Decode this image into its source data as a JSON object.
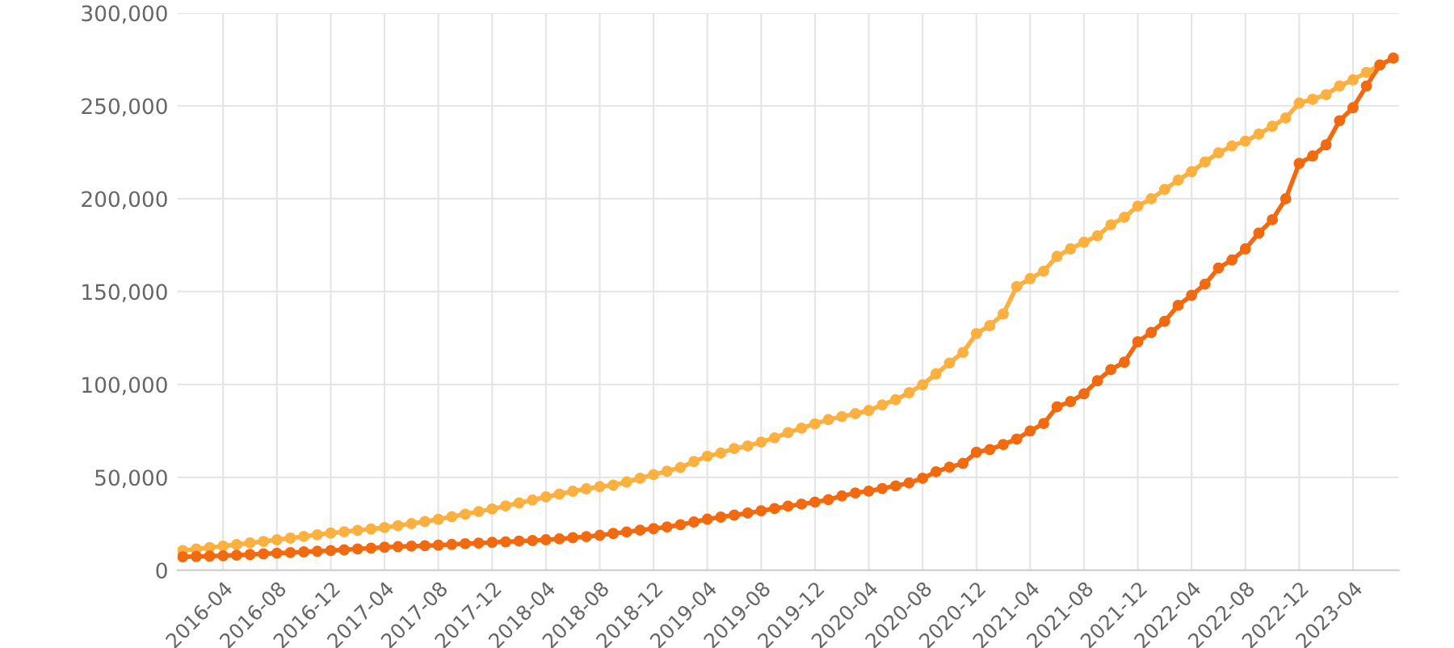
{
  "chart_data": {
    "type": "line",
    "categories": [
      null,
      null,
      null,
      "2016-04",
      null,
      null,
      null,
      "2016-08",
      null,
      null,
      null,
      "2016-12",
      null,
      null,
      null,
      "2017-04",
      null,
      null,
      null,
      "2017-08",
      null,
      null,
      null,
      "2017-12",
      null,
      null,
      null,
      "2018-04",
      null,
      null,
      null,
      "2018-08",
      null,
      null,
      null,
      "2018-12",
      null,
      null,
      null,
      "2019-04",
      null,
      null,
      null,
      "2019-08",
      null,
      null,
      null,
      "2019-12",
      null,
      null,
      null,
      "2020-04",
      null,
      null,
      null,
      "2020-08",
      null,
      null,
      null,
      "2020-12",
      null,
      null,
      null,
      "2021-04",
      null,
      null,
      null,
      "2021-08",
      null,
      null,
      null,
      "2021-12",
      null,
      null,
      null,
      "2022-04",
      null,
      null,
      null,
      "2022-08",
      null,
      null,
      null,
      "2022-12",
      null,
      null,
      null,
      "2023-04",
      null,
      null,
      null
    ],
    "series": [
      {
        "color": "#fbb040",
        "values": [
          10600,
          11400,
          12200,
          13000,
          13800,
          14700,
          15500,
          16400,
          17300,
          18200,
          19100,
          20000,
          20700,
          21500,
          22200,
          23000,
          24000,
          25100,
          26200,
          27400,
          28800,
          30200,
          31600,
          33000,
          34600,
          36200,
          37800,
          39500,
          41000,
          42500,
          43800,
          45000,
          45800,
          47500,
          49500,
          51500,
          53300,
          55300,
          58500,
          61400,
          63100,
          65500,
          66900,
          69000,
          71300,
          74100,
          76500,
          78800,
          81100,
          82700,
          84300,
          86000,
          89000,
          91800,
          95600,
          99900,
          105700,
          111500,
          117300,
          127400,
          131700,
          138000,
          152700,
          157000,
          161000,
          169000,
          173000,
          176600,
          180000,
          186000,
          190000,
          196000,
          200000,
          205000,
          210000,
          214600,
          219800,
          224700,
          228400,
          231000,
          234800,
          239000,
          243500,
          251500,
          253500,
          256000,
          260700,
          264000,
          268000,
          272000,
          275700
        ]
      },
      {
        "color": "#f26a10",
        "values": [
          7200,
          7400,
          7600,
          7800,
          8100,
          8500,
          8800,
          9200,
          9500,
          9900,
          10200,
          10600,
          11000,
          11500,
          11900,
          12400,
          12700,
          13000,
          13200,
          13500,
          13900,
          14300,
          14600,
          15000,
          15300,
          15700,
          16000,
          16400,
          16900,
          17500,
          18100,
          18800,
          19800,
          20600,
          21600,
          22400,
          23300,
          24500,
          26000,
          27500,
          28600,
          29700,
          30800,
          32000,
          33200,
          34500,
          35600,
          36700,
          38000,
          40000,
          41600,
          42600,
          44000,
          45400,
          47000,
          49500,
          53000,
          55500,
          57500,
          63500,
          65000,
          67700,
          70600,
          75000,
          79000,
          88000,
          90800,
          95000,
          102000,
          108000,
          112000,
          123000,
          128000,
          134000,
          142600,
          148000,
          154000,
          162700,
          167000,
          173000,
          181500,
          188700,
          200000,
          219000,
          223000,
          229000,
          242000,
          249000,
          260700,
          272000,
          275700
        ]
      }
    ],
    "ylim": [
      0,
      300000
    ],
    "yticks": [
      {
        "value": 0,
        "label": "0"
      },
      {
        "value": 50000,
        "label": "50,000"
      },
      {
        "value": 100000,
        "label": "100,000"
      },
      {
        "value": 150000,
        "label": "150,000"
      },
      {
        "value": 200000,
        "label": "200,000"
      },
      {
        "value": 250000,
        "label": "250,000"
      },
      {
        "value": 300000,
        "label": "300,000"
      }
    ],
    "grid": true,
    "marker": "circle",
    "line_style": "solid"
  }
}
